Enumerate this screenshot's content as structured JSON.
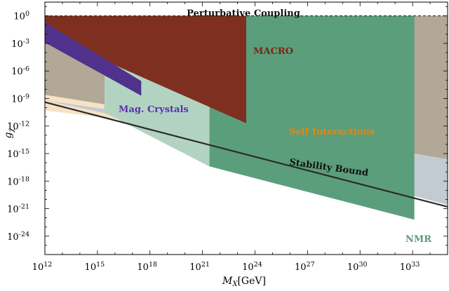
{
  "chart_data": {
    "type": "area",
    "title": "",
    "xlabel": "M_X[GeV]",
    "ylabel": "g_χ",
    "x_log_scale": true,
    "y_log_scale": true,
    "xlim_log10": [
      12,
      35
    ],
    "ylim_log10": [
      -26,
      1.5
    ],
    "x_ticks": [
      {
        "exp": 12,
        "label": "10^12"
      },
      {
        "exp": 15,
        "label": "10^15"
      },
      {
        "exp": 18,
        "label": "10^18"
      },
      {
        "exp": 21,
        "label": "10^21"
      },
      {
        "exp": 24,
        "label": "10^24"
      },
      {
        "exp": 27,
        "label": "10^27"
      },
      {
        "exp": 30,
        "label": "10^30"
      },
      {
        "exp": 33,
        "label": "10^33"
      }
    ],
    "y_ticks": [
      {
        "exp": 0,
        "label": "10^0"
      },
      {
        "exp": -3,
        "label": "10^-3"
      },
      {
        "exp": -6,
        "label": "10^-6"
      },
      {
        "exp": -9,
        "label": "10^-9"
      },
      {
        "exp": -12,
        "label": "10^-12"
      },
      {
        "exp": -15,
        "label": "10^-15"
      },
      {
        "exp": -18,
        "label": "10^-18"
      },
      {
        "exp": -21,
        "label": "10^-21"
      },
      {
        "exp": -24,
        "label": "10^-24"
      }
    ],
    "perturbative_coupling": {
      "label": "Perturbative Coupling",
      "log10_g": 0,
      "color": "#111111"
    },
    "regions": [
      {
        "label": "Self Interactions",
        "color": "#f6e2c4",
        "label_color": "#d98a1a",
        "polygon_log10": [
          [
            12,
            0
          ],
          [
            35,
            0
          ],
          [
            35,
            -15.6
          ],
          [
            12,
            -10.3
          ]
        ]
      },
      {
        "label": "",
        "color": "#b1a898",
        "polygon_log10": [
          [
            12,
            0
          ],
          [
            35,
            0
          ],
          [
            35,
            -15.6
          ],
          [
            12,
            -8.6
          ]
        ]
      },
      {
        "label": "",
        "color": "#c2cad2",
        "polygon_log10": [
          [
            12,
            -9.2
          ],
          [
            35,
            -15.6
          ],
          [
            35,
            -20.6
          ],
          [
            15.4,
            -10.6
          ]
        ]
      },
      {
        "label": "NMR",
        "color": "#5b9e7b",
        "label_color": "#5a9a78",
        "polygon_log10": [
          [
            15.4,
            0
          ],
          [
            33.1,
            0
          ],
          [
            33.1,
            -22.2
          ],
          [
            21.4,
            -16.4
          ],
          [
            15.4,
            -10.5
          ]
        ]
      },
      {
        "label": "",
        "color": "#b3d3c2",
        "polygon_log10": [
          [
            15.4,
            -4.8
          ],
          [
            21.4,
            -4.8
          ],
          [
            21.4,
            -16.4
          ],
          [
            15.4,
            -10.5
          ]
        ]
      },
      {
        "label": "MACRO",
        "color": "#7f2f20",
        "label_color": "#7d2515",
        "polygon_log10": [
          [
            12,
            0
          ],
          [
            23.5,
            0
          ],
          [
            23.5,
            -11.7
          ],
          [
            12,
            -2
          ]
        ]
      },
      {
        "label": "Mag. Crystals",
        "color": "#50318c",
        "label_color": "#5a2fb0",
        "polygon_log10": [
          [
            12,
            -0.7
          ],
          [
            17.5,
            -7.1
          ],
          [
            17.5,
            -8.7
          ],
          [
            12,
            -2.9
          ]
        ]
      }
    ],
    "stability_bound": {
      "label": "Stability Bound",
      "color": "#2b2b2b",
      "points_log10": [
        [
          12,
          -9.4
        ],
        [
          35,
          -20.8
        ]
      ]
    }
  }
}
